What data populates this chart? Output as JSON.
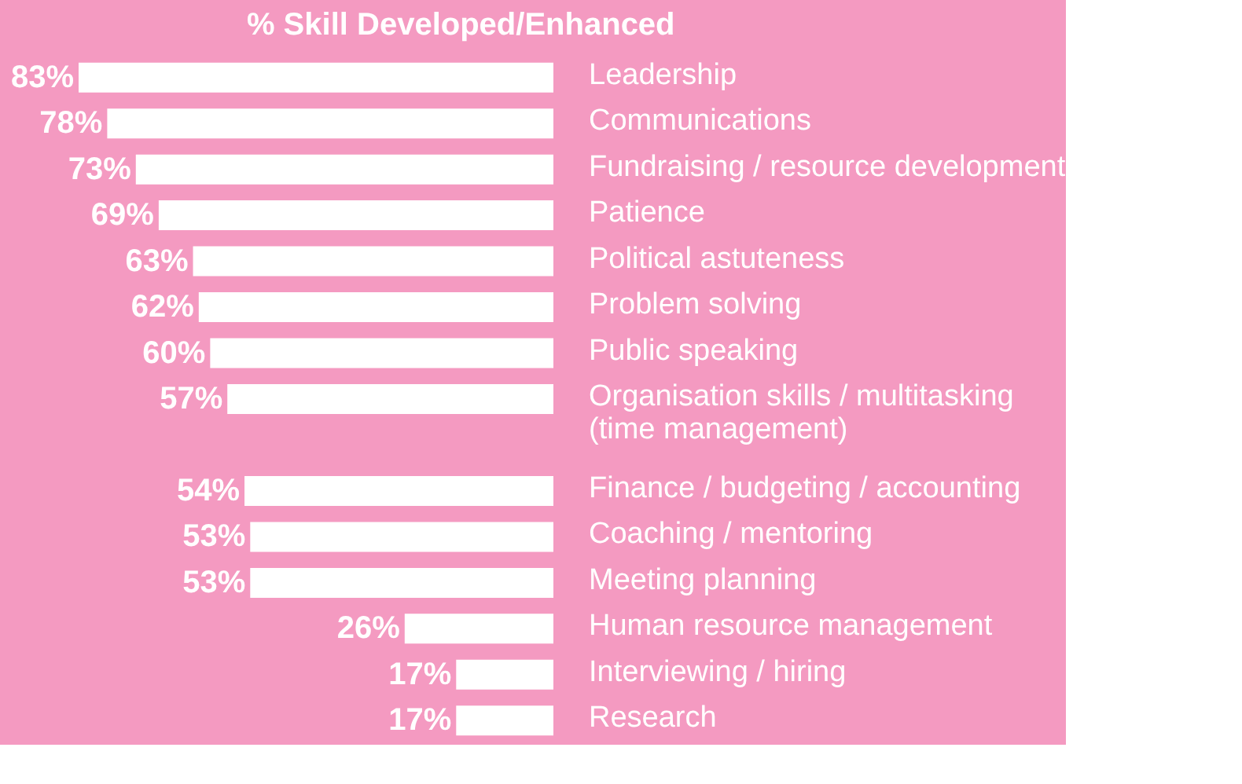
{
  "chart_data": {
    "type": "bar",
    "orientation": "horizontal",
    "title": "% Skill Developed/Enhanced",
    "categories": [
      "Leadership",
      "Communications",
      "Fundraising / resource development",
      "Patience",
      "Political astuteness",
      "Problem solving",
      "Public speaking",
      "Organisation skills / multitasking\n(time management)",
      "Finance / budgeting / accounting",
      "Coaching / mentoring",
      "Meeting planning",
      "Human resource management",
      "Interviewing / hiring",
      "Research"
    ],
    "values": [
      83,
      78,
      73,
      69,
      63,
      62,
      60,
      57,
      54,
      53,
      53,
      26,
      17,
      17
    ],
    "value_labels": [
      "83%",
      "78%",
      "73%",
      "69%",
      "63%",
      "62%",
      "60%",
      "57%",
      "54%",
      "53%",
      "53%",
      "26%",
      "17%",
      "17%"
    ],
    "color": "#ffffff",
    "tick_labels": "y"
  }
}
